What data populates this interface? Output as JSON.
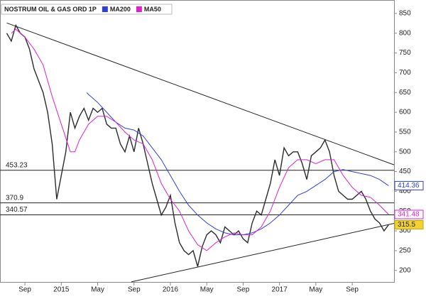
{
  "chart_data": {
    "type": "line",
    "xlim": [
      -0.74,
      42.6
    ],
    "xticks": [
      {
        "value": 2,
        "label": "Sep"
      },
      {
        "value": 6,
        "label": "2015"
      },
      {
        "value": 10,
        "label": "May"
      },
      {
        "value": 14,
        "label": "Sep"
      },
      {
        "value": 18,
        "label": "2016"
      },
      {
        "value": 22,
        "label": "May"
      },
      {
        "value": 26,
        "label": "Sep"
      },
      {
        "value": 30,
        "label": "2017"
      },
      {
        "value": 34,
        "label": "May"
      },
      {
        "value": 38,
        "label": "Sep"
      }
    ],
    "ylim": [
      169,
      884
    ],
    "yticks": [
      200,
      250,
      300,
      350,
      400,
      450,
      500,
      550,
      600,
      650,
      700,
      750,
      800,
      850
    ],
    "grid": false,
    "series": [
      {
        "name": "NOSTRUM OIL & GAS ORD 1P",
        "color": "#2b2b2b",
        "x": [
          0,
          0.5,
          1,
          1.5,
          2,
          2.5,
          3,
          3.5,
          4,
          4.5,
          5,
          5.5,
          6,
          6.5,
          7,
          7.5,
          8,
          8.5,
          9,
          9.5,
          10,
          10.5,
          11,
          11.5,
          12,
          12.5,
          13,
          13.5,
          14,
          14.5,
          15,
          15.5,
          16,
          16.5,
          17,
          17.5,
          18,
          18.5,
          19,
          19.5,
          20,
          20.5,
          21,
          21.5,
          22,
          22.5,
          23,
          23.5,
          24,
          24.5,
          25,
          25.5,
          26,
          26.5,
          27,
          27.5,
          28,
          28.5,
          29,
          29.5,
          30,
          30.5,
          31,
          31.5,
          32,
          32.5,
          33,
          33.5,
          34,
          34.5,
          35,
          35.5,
          36,
          36.5,
          37,
          37.5,
          38,
          38.5,
          39,
          39.5,
          40,
          40.5,
          41,
          41.5,
          42
        ],
        "values": [
          800,
          780,
          820,
          800,
          790,
          760,
          710,
          680,
          650,
          600,
          520,
          380,
          440,
          500,
          600,
          560,
          590,
          610,
          580,
          610,
          600,
          610,
          570,
          560,
          560,
          520,
          500,
          540,
          500,
          560,
          520,
          470,
          420,
          380,
          340,
          360,
          390,
          320,
          270,
          250,
          240,
          250,
          210,
          260,
          290,
          300,
          290,
          270,
          310,
          300,
          290,
          300,
          280,
          270,
          320,
          350,
          340,
          380,
          420,
          480,
          440,
          510,
          490,
          500,
          500,
          470,
          430,
          490,
          500,
          510,
          530,
          500,
          440,
          400,
          390,
          380,
          380,
          390,
          400,
          380,
          350,
          330,
          320,
          300,
          315.5
        ]
      },
      {
        "name": "MA200",
        "color": "#2f3fd8",
        "x": [
          8.8,
          9,
          10,
          11,
          12,
          13,
          14,
          15,
          16,
          17,
          18,
          19,
          20,
          21,
          22,
          23,
          24,
          25,
          26,
          27,
          28,
          29,
          30,
          31,
          32,
          33,
          34,
          35,
          36,
          37,
          38,
          39,
          40,
          41,
          42
        ],
        "values": [
          650,
          645,
          625,
          600,
          575,
          560,
          555,
          540,
          510,
          480,
          440,
          400,
          365,
          340,
          320,
          305,
          295,
          290,
          290,
          295,
          305,
          320,
          340,
          365,
          390,
          400,
          415,
          430,
          450,
          455,
          450,
          445,
          440,
          430,
          414.36
        ]
      },
      {
        "name": "MA50",
        "color": "#e020d0",
        "x": [
          0.5,
          1,
          2,
          3,
          4,
          5,
          6,
          7,
          7.5,
          8,
          9,
          10,
          11,
          12,
          13,
          14,
          15,
          16,
          17,
          18,
          19,
          20,
          21,
          22,
          23,
          24,
          25,
          26,
          27,
          28,
          29,
          30,
          31,
          32,
          33,
          34,
          35,
          36,
          37,
          38,
          39,
          40,
          41,
          42
        ],
        "values": [
          800,
          810,
          790,
          760,
          720,
          640,
          570,
          500,
          500,
          530,
          570,
          590,
          590,
          575,
          550,
          530,
          520,
          480,
          420,
          380,
          350,
          300,
          265,
          250,
          270,
          285,
          295,
          290,
          290,
          310,
          350,
          410,
          460,
          480,
          480,
          470,
          480,
          480,
          440,
          410,
          390,
          385,
          365,
          341.48
        ]
      }
    ],
    "levels": [
      453.23,
      370.9,
      340.57
    ],
    "trendlines": [
      {
        "x": [
          0,
          42.6
        ],
        "y": [
          826,
          467
        ]
      },
      {
        "x": [
          13.7,
          42.6
        ],
        "y": [
          171,
          319
        ]
      }
    ]
  }
}
